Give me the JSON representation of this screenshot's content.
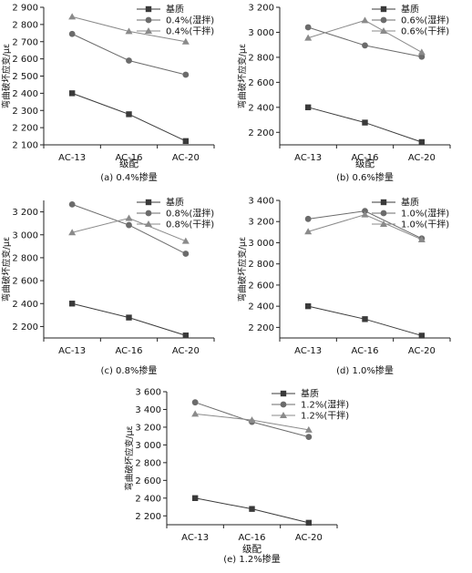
{
  "colors": {
    "series": [
      "#3a3a3a",
      "#6b6b6b",
      "#8a8a8a"
    ],
    "axis": "#222222"
  },
  "chart_data": [
    {
      "type": "line",
      "caption": "(a) 0.4%掺量",
      "xlabel": "级配",
      "ylabel": "弯曲破坏应变/με",
      "categories": [
        "AC-13",
        "AC-16",
        "AC-20"
      ],
      "ylim": [
        2100,
        2900
      ],
      "yticks": [
        2100,
        2200,
        2300,
        2400,
        2500,
        2600,
        2700,
        2800,
        2900
      ],
      "ytick_labels": [
        "2 100",
        "2 200",
        "2 300",
        "2 400",
        "2 500",
        "2 600",
        "2 700",
        "2 800",
        "2 900"
      ],
      "legend_position": "top-right",
      "series": [
        {
          "name": "基质",
          "marker": "square",
          "values": [
            2400,
            2278,
            2122
          ]
        },
        {
          "name": "0.4%(湿拌)",
          "marker": "circle",
          "values": [
            2745,
            2590,
            2508
          ]
        },
        {
          "name": "0.4%(干拌)",
          "marker": "triangle",
          "values": [
            2845,
            2760,
            2700
          ]
        }
      ]
    },
    {
      "type": "line",
      "caption": "(b) 0.6%掺量",
      "xlabel": "级配",
      "ylabel": "弯曲破坏应变/με",
      "categories": [
        "AC-13",
        "AC-16",
        "AC-20"
      ],
      "ylim": [
        2100,
        3200
      ],
      "yticks": [
        2200,
        2400,
        2600,
        2800,
        3000,
        3200
      ],
      "ytick_labels": [
        "2 200",
        "2 400",
        "2 600",
        "2 800",
        "3 000",
        "3 200"
      ],
      "legend_position": "top-right",
      "series": [
        {
          "name": "基质",
          "marker": "square",
          "values": [
            2400,
            2278,
            2122
          ]
        },
        {
          "name": "0.6%(湿拌)",
          "marker": "circle",
          "values": [
            3040,
            2895,
            2805
          ]
        },
        {
          "name": "0.6%(干拌)",
          "marker": "triangle",
          "values": [
            2955,
            3095,
            2840
          ]
        }
      ]
    },
    {
      "type": "line",
      "caption": "(c) 0.8%掺量",
      "xlabel": "",
      "ylabel": "弯曲破坏应变/με",
      "categories": [
        "AC-13",
        "AC-16",
        "AC-20"
      ],
      "ylim": [
        2100,
        3300
      ],
      "yticks": [
        2200,
        2400,
        2600,
        2800,
        3000,
        3200
      ],
      "ytick_labels": [
        "2 200",
        "2 400",
        "2 600",
        "2 800",
        "3 000",
        "3 200"
      ],
      "legend_position": "top-right",
      "series": [
        {
          "name": "基质",
          "marker": "square",
          "values": [
            2400,
            2278,
            2122
          ]
        },
        {
          "name": "0.8%(湿拌)",
          "marker": "circle",
          "values": [
            3265,
            3085,
            2835
          ]
        },
        {
          "name": "0.8%(干拌)",
          "marker": "triangle",
          "values": [
            3020,
            3145,
            2945
          ]
        }
      ]
    },
    {
      "type": "line",
      "caption": "(d) 1.0%掺量",
      "xlabel": "",
      "ylabel": "弯曲破坏应变/με",
      "categories": [
        "AC-13",
        "AC-16",
        "AC-20"
      ],
      "ylim": [
        2100,
        3400
      ],
      "yticks": [
        2200,
        2400,
        2600,
        2800,
        3000,
        3200,
        3400
      ],
      "ytick_labels": [
        "2 200",
        "2 400",
        "2 600",
        "2 800",
        "3 000",
        "3 200",
        "3 400"
      ],
      "legend_position": "top-right",
      "series": [
        {
          "name": "基质",
          "marker": "square",
          "values": [
            2400,
            2278,
            2122
          ]
        },
        {
          "name": "1.0%(湿拌)",
          "marker": "circle",
          "values": [
            3225,
            3300,
            3040
          ]
        },
        {
          "name": "1.0%(干拌)",
          "marker": "triangle",
          "values": [
            3105,
            3265,
            3030
          ]
        }
      ]
    },
    {
      "type": "line",
      "caption": "(e) 1.2%掺量",
      "xlabel": "级配",
      "ylabel": "弯曲破坏应变/με",
      "categories": [
        "AC-13",
        "AC-16",
        "AC-20"
      ],
      "ylim": [
        2100,
        3600
      ],
      "yticks": [
        2200,
        2400,
        2600,
        2800,
        3000,
        3200,
        3400,
        3600
      ],
      "ytick_labels": [
        "2 200",
        "2 400",
        "2 600",
        "2 800",
        "3 000",
        "3 200",
        "3 400",
        "3 600"
      ],
      "legend_position": "top-right",
      "series": [
        {
          "name": "基质",
          "marker": "square",
          "values": [
            2400,
            2278,
            2122
          ]
        },
        {
          "name": "1.2%(湿拌)",
          "marker": "circle",
          "values": [
            3480,
            3260,
            3090
          ]
        },
        {
          "name": "1.2%(干拌)",
          "marker": "triangle",
          "values": [
            3350,
            3280,
            3170
          ]
        }
      ]
    }
  ]
}
